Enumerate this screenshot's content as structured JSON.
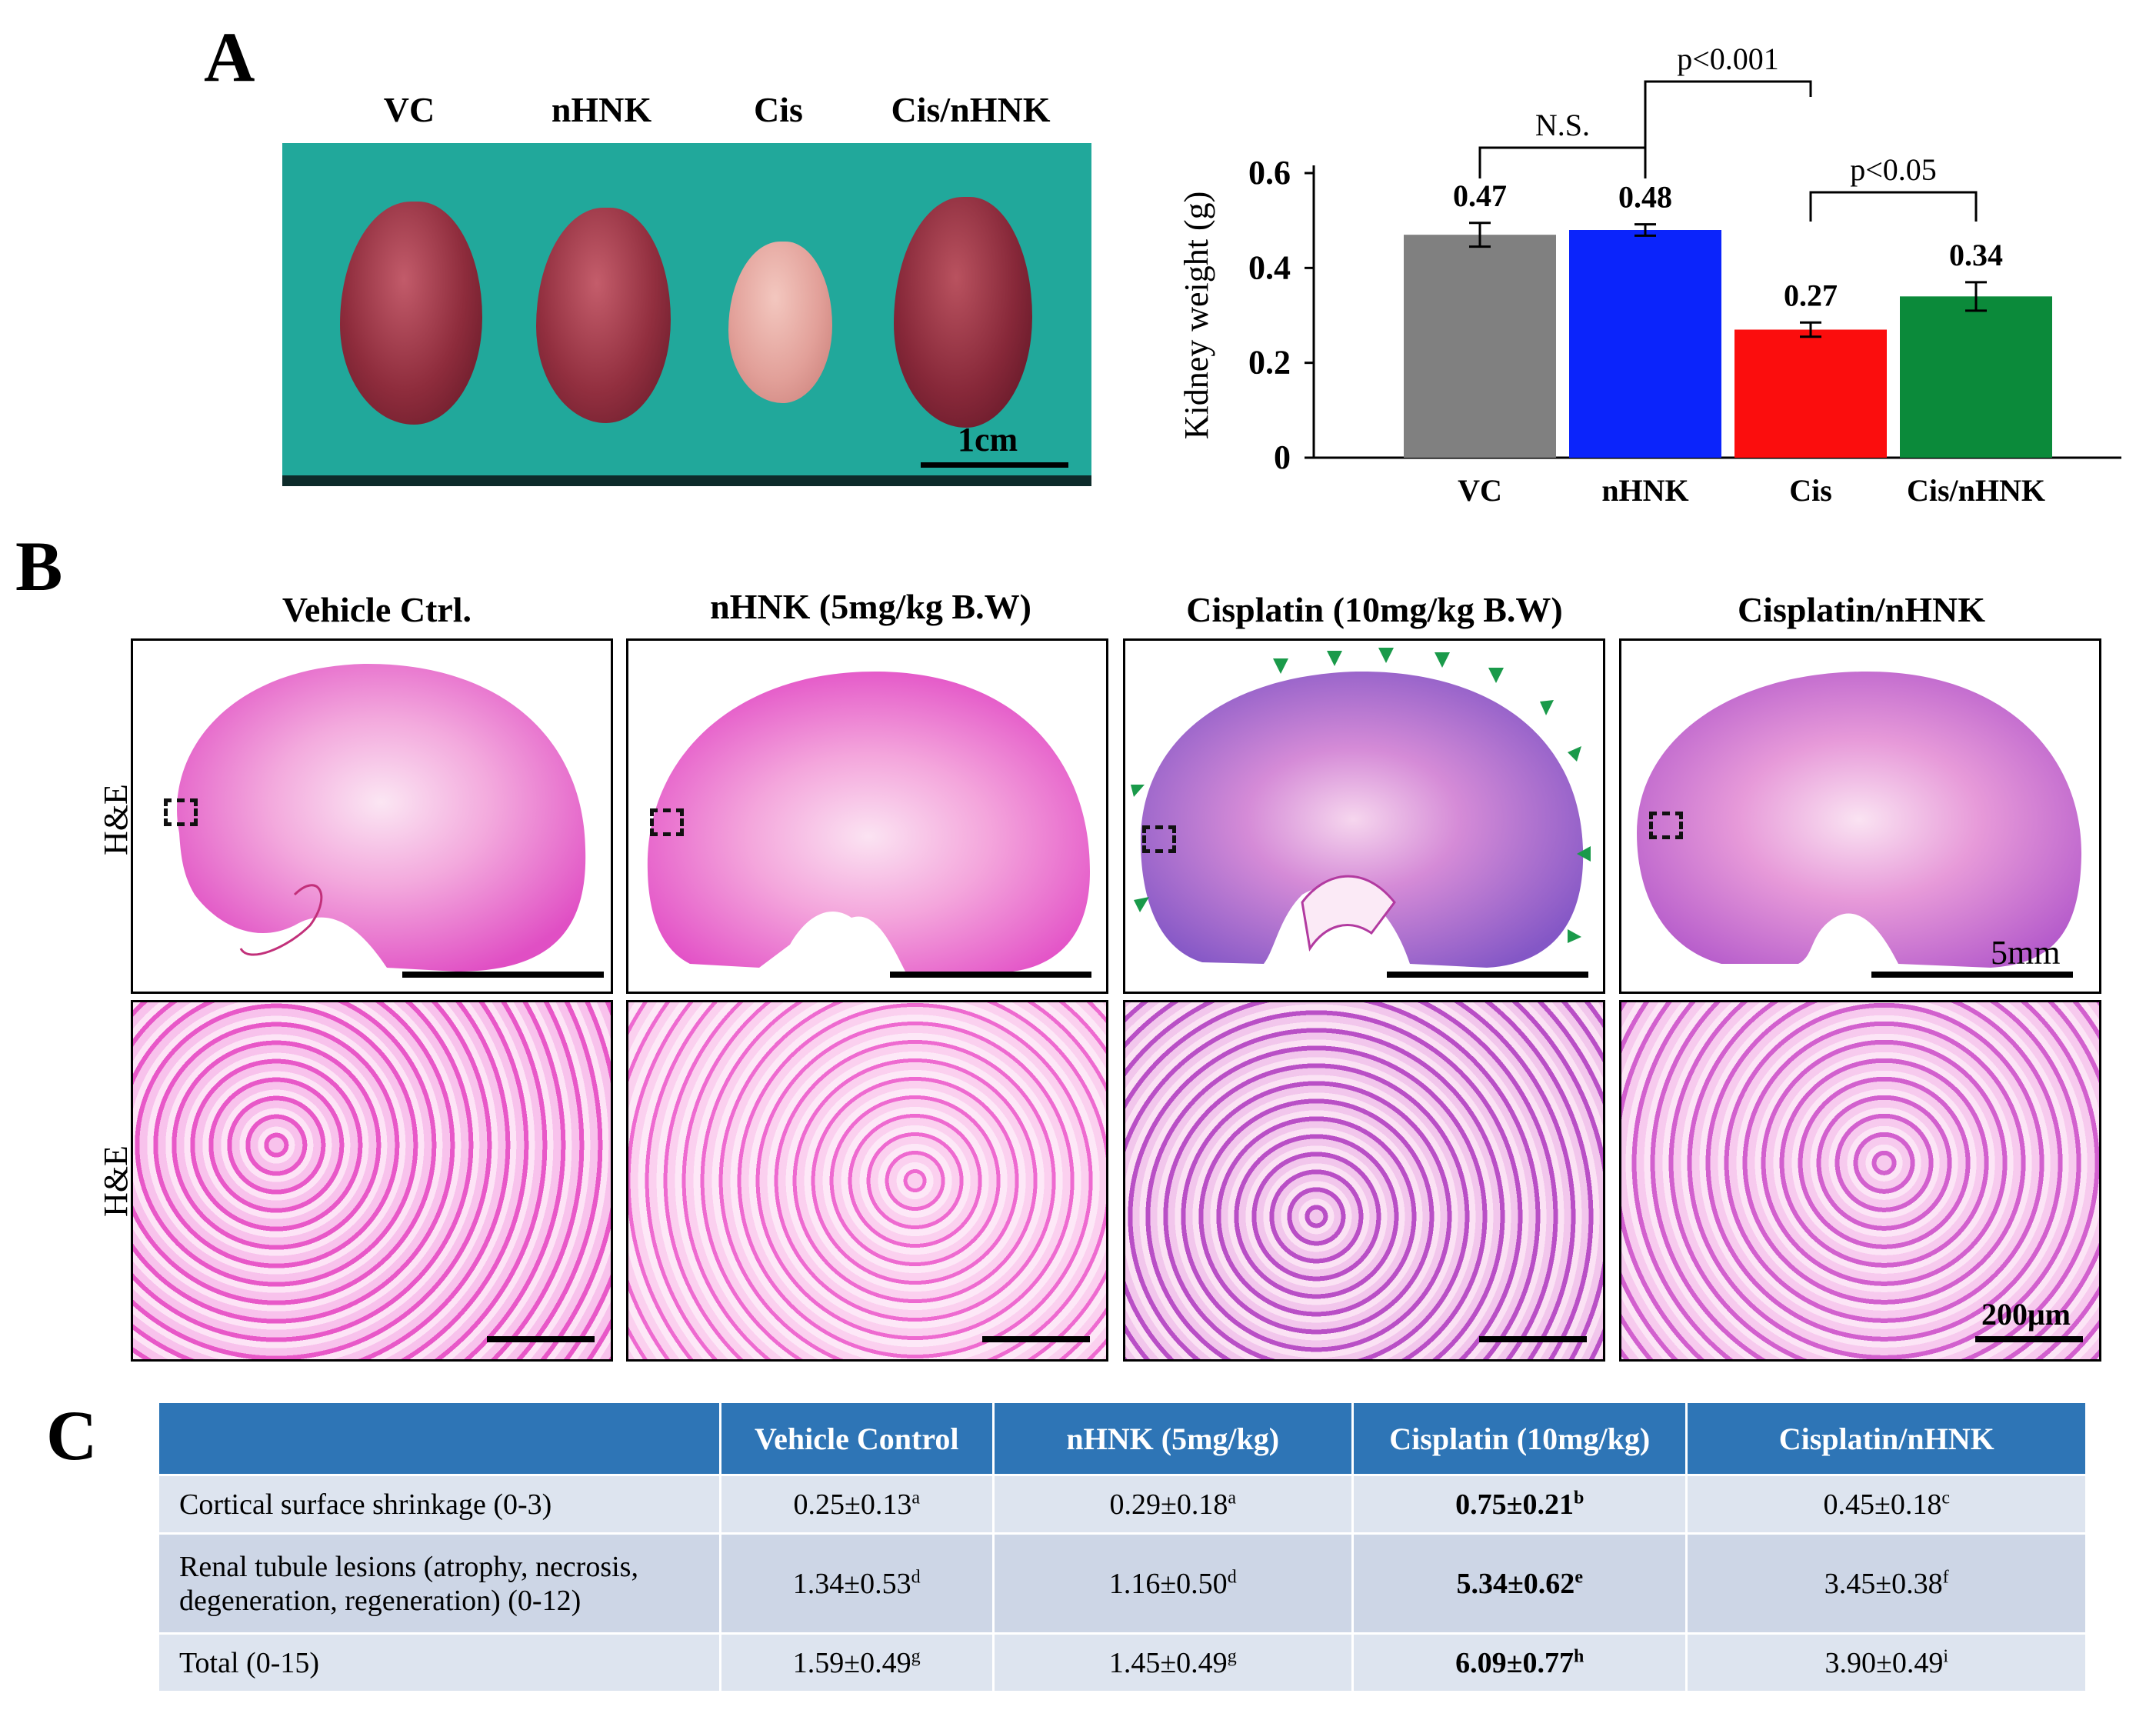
{
  "panel_labels": {
    "a": "A",
    "b": "B",
    "c": "C"
  },
  "panel_a": {
    "photo_columns": [
      "VC",
      "nHNK",
      "Cis",
      "Cis/nHNK"
    ],
    "scale_bar_label": "1cm",
    "chart_data": {
      "type": "bar",
      "categories": [
        "VC",
        "nHNK",
        "Cis",
        "Cis/nHNK"
      ],
      "values": [
        0.47,
        0.48,
        0.27,
        0.34
      ],
      "errors": [
        0.025,
        0.012,
        0.015,
        0.03
      ],
      "value_labels": [
        "0.47",
        "0.48",
        "0.27",
        "0.34"
      ],
      "colors": [
        "#808080",
        "#0b24fb",
        "#fb0d0d",
        "#0b8a3a"
      ],
      "ylabel": "Kidney weight (g)",
      "xlabel": "",
      "ylim": [
        0,
        0.6
      ],
      "yticks": [
        0,
        0.2,
        0.4,
        0.6
      ],
      "ytick_labels": [
        "0",
        "0.2",
        "0.4",
        "0.6"
      ],
      "comparisons": [
        {
          "from": "VC",
          "to": "nHNK",
          "label": "N.S."
        },
        {
          "from": "nHNK",
          "to": "Cis",
          "label": "p<0.001"
        },
        {
          "from": "Cis",
          "to": "Cis/nHNK",
          "label": "p<0.05"
        }
      ]
    }
  },
  "panel_b": {
    "column_titles": [
      "Vehicle Ctrl.",
      "nHNK (5mg/kg B.W)",
      "Cisplatin (10mg/kg B.W)",
      "Cisplatin/nHNK"
    ],
    "row_labels": [
      "H&E",
      "H&E"
    ],
    "low_mag_scale_label": "5mm",
    "high_mag_scale_label": "200μm",
    "arrowhead_color": "#1a9a4a"
  },
  "panel_c": {
    "headers": [
      "",
      "Vehicle Control",
      "nHNK (5mg/kg)",
      "Cisplatin (10mg/kg)",
      "Cisplatin/nHNK"
    ],
    "rows": [
      {
        "label": "Cortical surface shrinkage (0-3)",
        "cells": [
          {
            "v": "0.25±0.13",
            "s": "a"
          },
          {
            "v": "0.29±0.18",
            "s": "a"
          },
          {
            "v": "0.75±0.21",
            "s": "b"
          },
          {
            "v": "0.45±0.18",
            "s": "c"
          }
        ]
      },
      {
        "label": "Renal tubule lesions (atrophy, necrosis, degeneration, regeneration) (0-12)",
        "cells": [
          {
            "v": "1.34±0.53",
            "s": "d"
          },
          {
            "v": "1.16±0.50",
            "s": "d"
          },
          {
            "v": "5.34±0.62",
            "s": "e"
          },
          {
            "v": "3.45±0.38",
            "s": "f"
          }
        ]
      },
      {
        "label": "Total (0-15)",
        "cells": [
          {
            "v": "1.59±0.49",
            "s": "g"
          },
          {
            "v": "1.45±0.49",
            "s": "g"
          },
          {
            "v": "6.09±0.77",
            "s": "h"
          },
          {
            "v": "3.90±0.49",
            "s": "i"
          }
        ]
      }
    ]
  }
}
